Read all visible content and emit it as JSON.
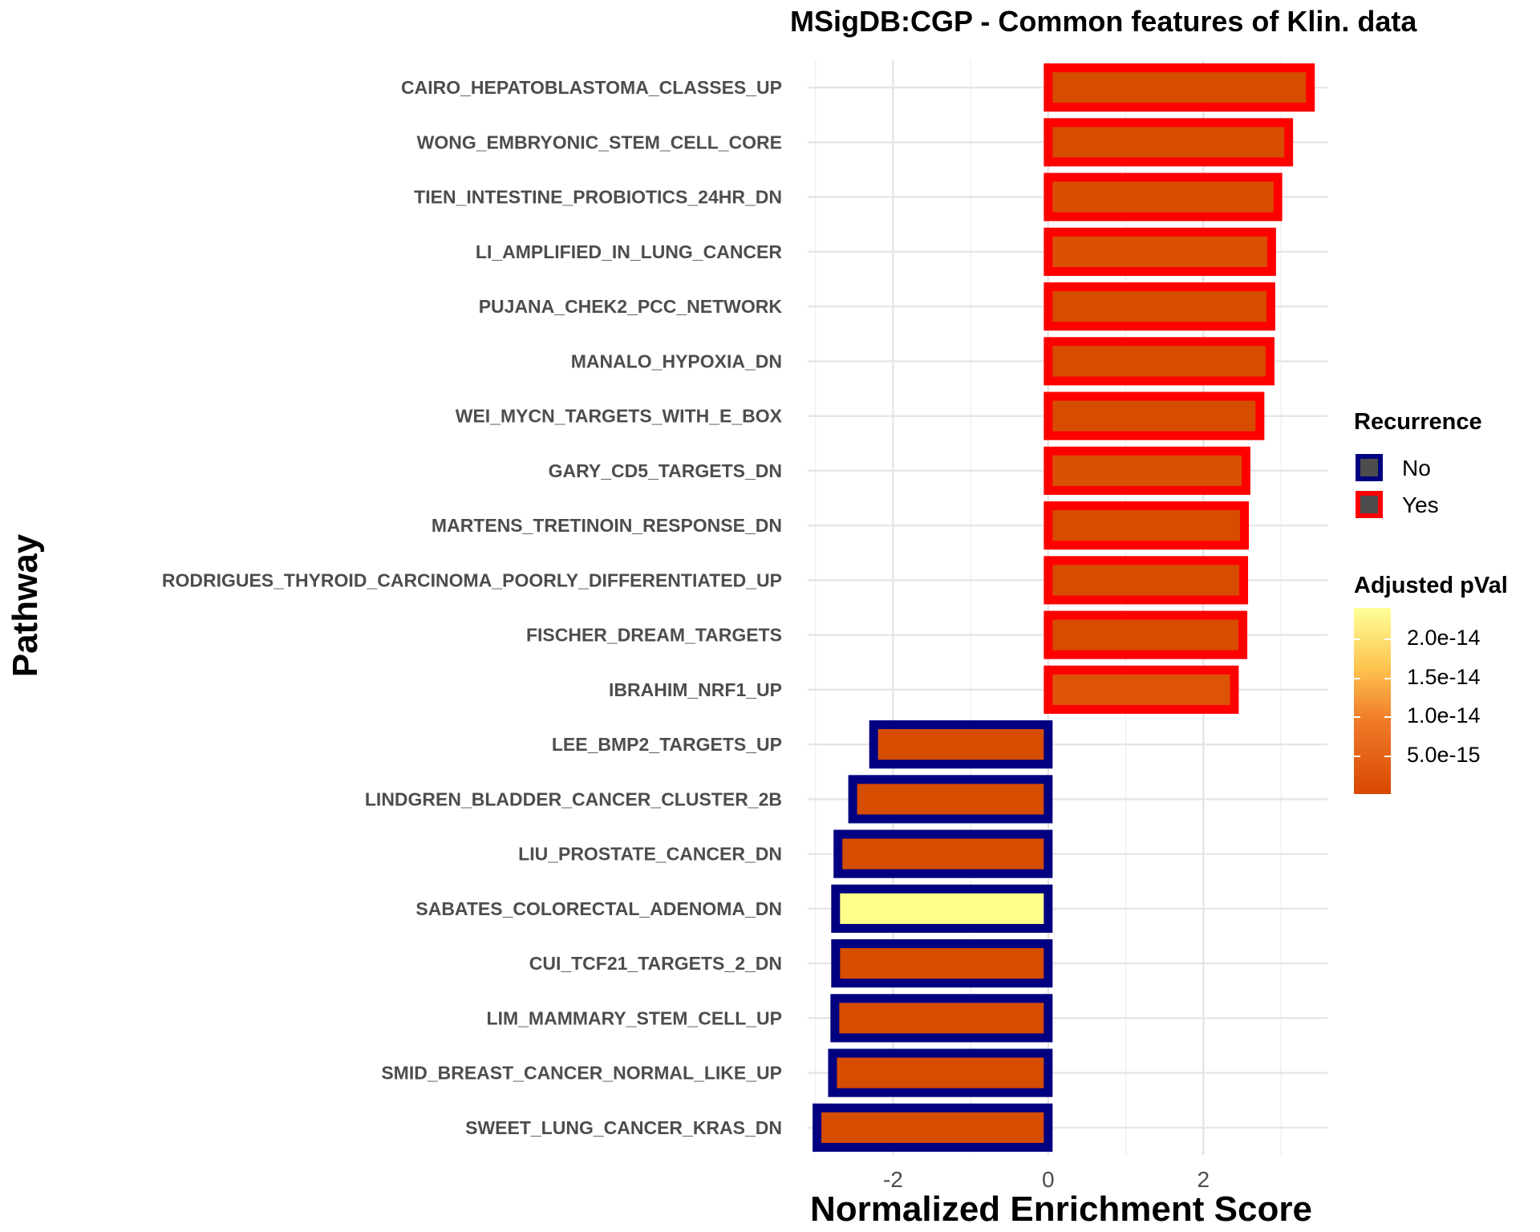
{
  "chart_data": {
    "type": "bar",
    "orientation": "horizontal",
    "title": "MSigDB:CGP - Common features of Klin. data",
    "xlabel": "Normalized Enrichment Score",
    "ylabel": "Pathway",
    "xlim": [
      -3.1,
      3.6
    ],
    "x_ticks": [
      "-2",
      "0",
      "2"
    ],
    "x_tick_values": [
      -2,
      0,
      2
    ],
    "grid": true,
    "legend_placement": "right",
    "categories": [
      "CAIRO_HEPATOBLASTOMA_CLASSES_UP",
      "WONG_EMBRYONIC_STEM_CELL_CORE",
      "TIEN_INTESTINE_PROBIOTICS_24HR_DN",
      "LI_AMPLIFIED_IN_LUNG_CANCER",
      "PUJANA_CHEK2_PCC_NETWORK",
      "MANALO_HYPOXIA_DN",
      "WEI_MYCN_TARGETS_WITH_E_BOX",
      "GARY_CD5_TARGETS_DN",
      "MARTENS_TRETINOIN_RESPONSE_DN",
      "RODRIGUES_THYROID_CARCINOMA_POORLY_DIFFERENTIATED_UP",
      "FISCHER_DREAM_TARGETS",
      "IBRAHIM_NRF1_UP",
      "LEE_BMP2_TARGETS_UP",
      "LINDGREN_BLADDER_CANCER_CLUSTER_2B",
      "LIU_PROSTATE_CANCER_DN",
      "SABATES_COLORECTAL_ADENOMA_DN",
      "CUI_TCF21_TARGETS_2_DN",
      "LIM_MAMMARY_STEM_CELL_UP",
      "SMID_BREAST_CANCER_NORMAL_LIKE_UP",
      "SWEET_LUNG_CANCER_KRAS_DN"
    ],
    "values": [
      3.38,
      3.1,
      2.96,
      2.88,
      2.87,
      2.86,
      2.73,
      2.55,
      2.53,
      2.52,
      2.51,
      2.4,
      -2.25,
      -2.52,
      -2.71,
      -2.74,
      -2.74,
      -2.75,
      -2.78,
      -2.98
    ],
    "recurrence": [
      "Yes",
      "Yes",
      "Yes",
      "Yes",
      "Yes",
      "Yes",
      "Yes",
      "Yes",
      "Yes",
      "Yes",
      "Yes",
      "Yes",
      "No",
      "No",
      "No",
      "No",
      "No",
      "No",
      "No",
      "No"
    ],
    "adjusted_pval": [
      2e-16,
      3e-16,
      4e-16,
      8e-16,
      2e-16,
      3e-16,
      2e-16,
      1e-15,
      2e-16,
      5e-16,
      3e-16,
      2e-15,
      3e-16,
      2e-16,
      2e-16,
      2.4e-14,
      2e-16,
      3e-16,
      2e-16,
      5e-16
    ],
    "fill_colors": [
      "#d64c00",
      "#d64c00",
      "#d94e02",
      "#da5004",
      "#d64c00",
      "#d64c00",
      "#d64c00",
      "#d95104",
      "#d64c00",
      "#d64c00",
      "#d64c00",
      "#dd5408",
      "#d64c00",
      "#d64c00",
      "#d64c00",
      "#ffff8a",
      "#d64c00",
      "#d64c00",
      "#d64c00",
      "#d64c00"
    ],
    "recurrence_legend": {
      "title": "Recurrence",
      "items": [
        {
          "label": "No",
          "color": "#000080"
        },
        {
          "label": "Yes",
          "color": "#ff0000"
        }
      ]
    },
    "pval_legend": {
      "title": "Adjusted pVal",
      "ticks": [
        "2.0e-14",
        "1.5e-14",
        "1.0e-14",
        "5.0e-15"
      ],
      "tick_values": [
        2e-14,
        1.5e-14,
        1e-14,
        5e-15
      ],
      "range": [
        2e-16,
        2.4e-14
      ],
      "colors": [
        "#d94801",
        "#ffff99"
      ]
    }
  }
}
